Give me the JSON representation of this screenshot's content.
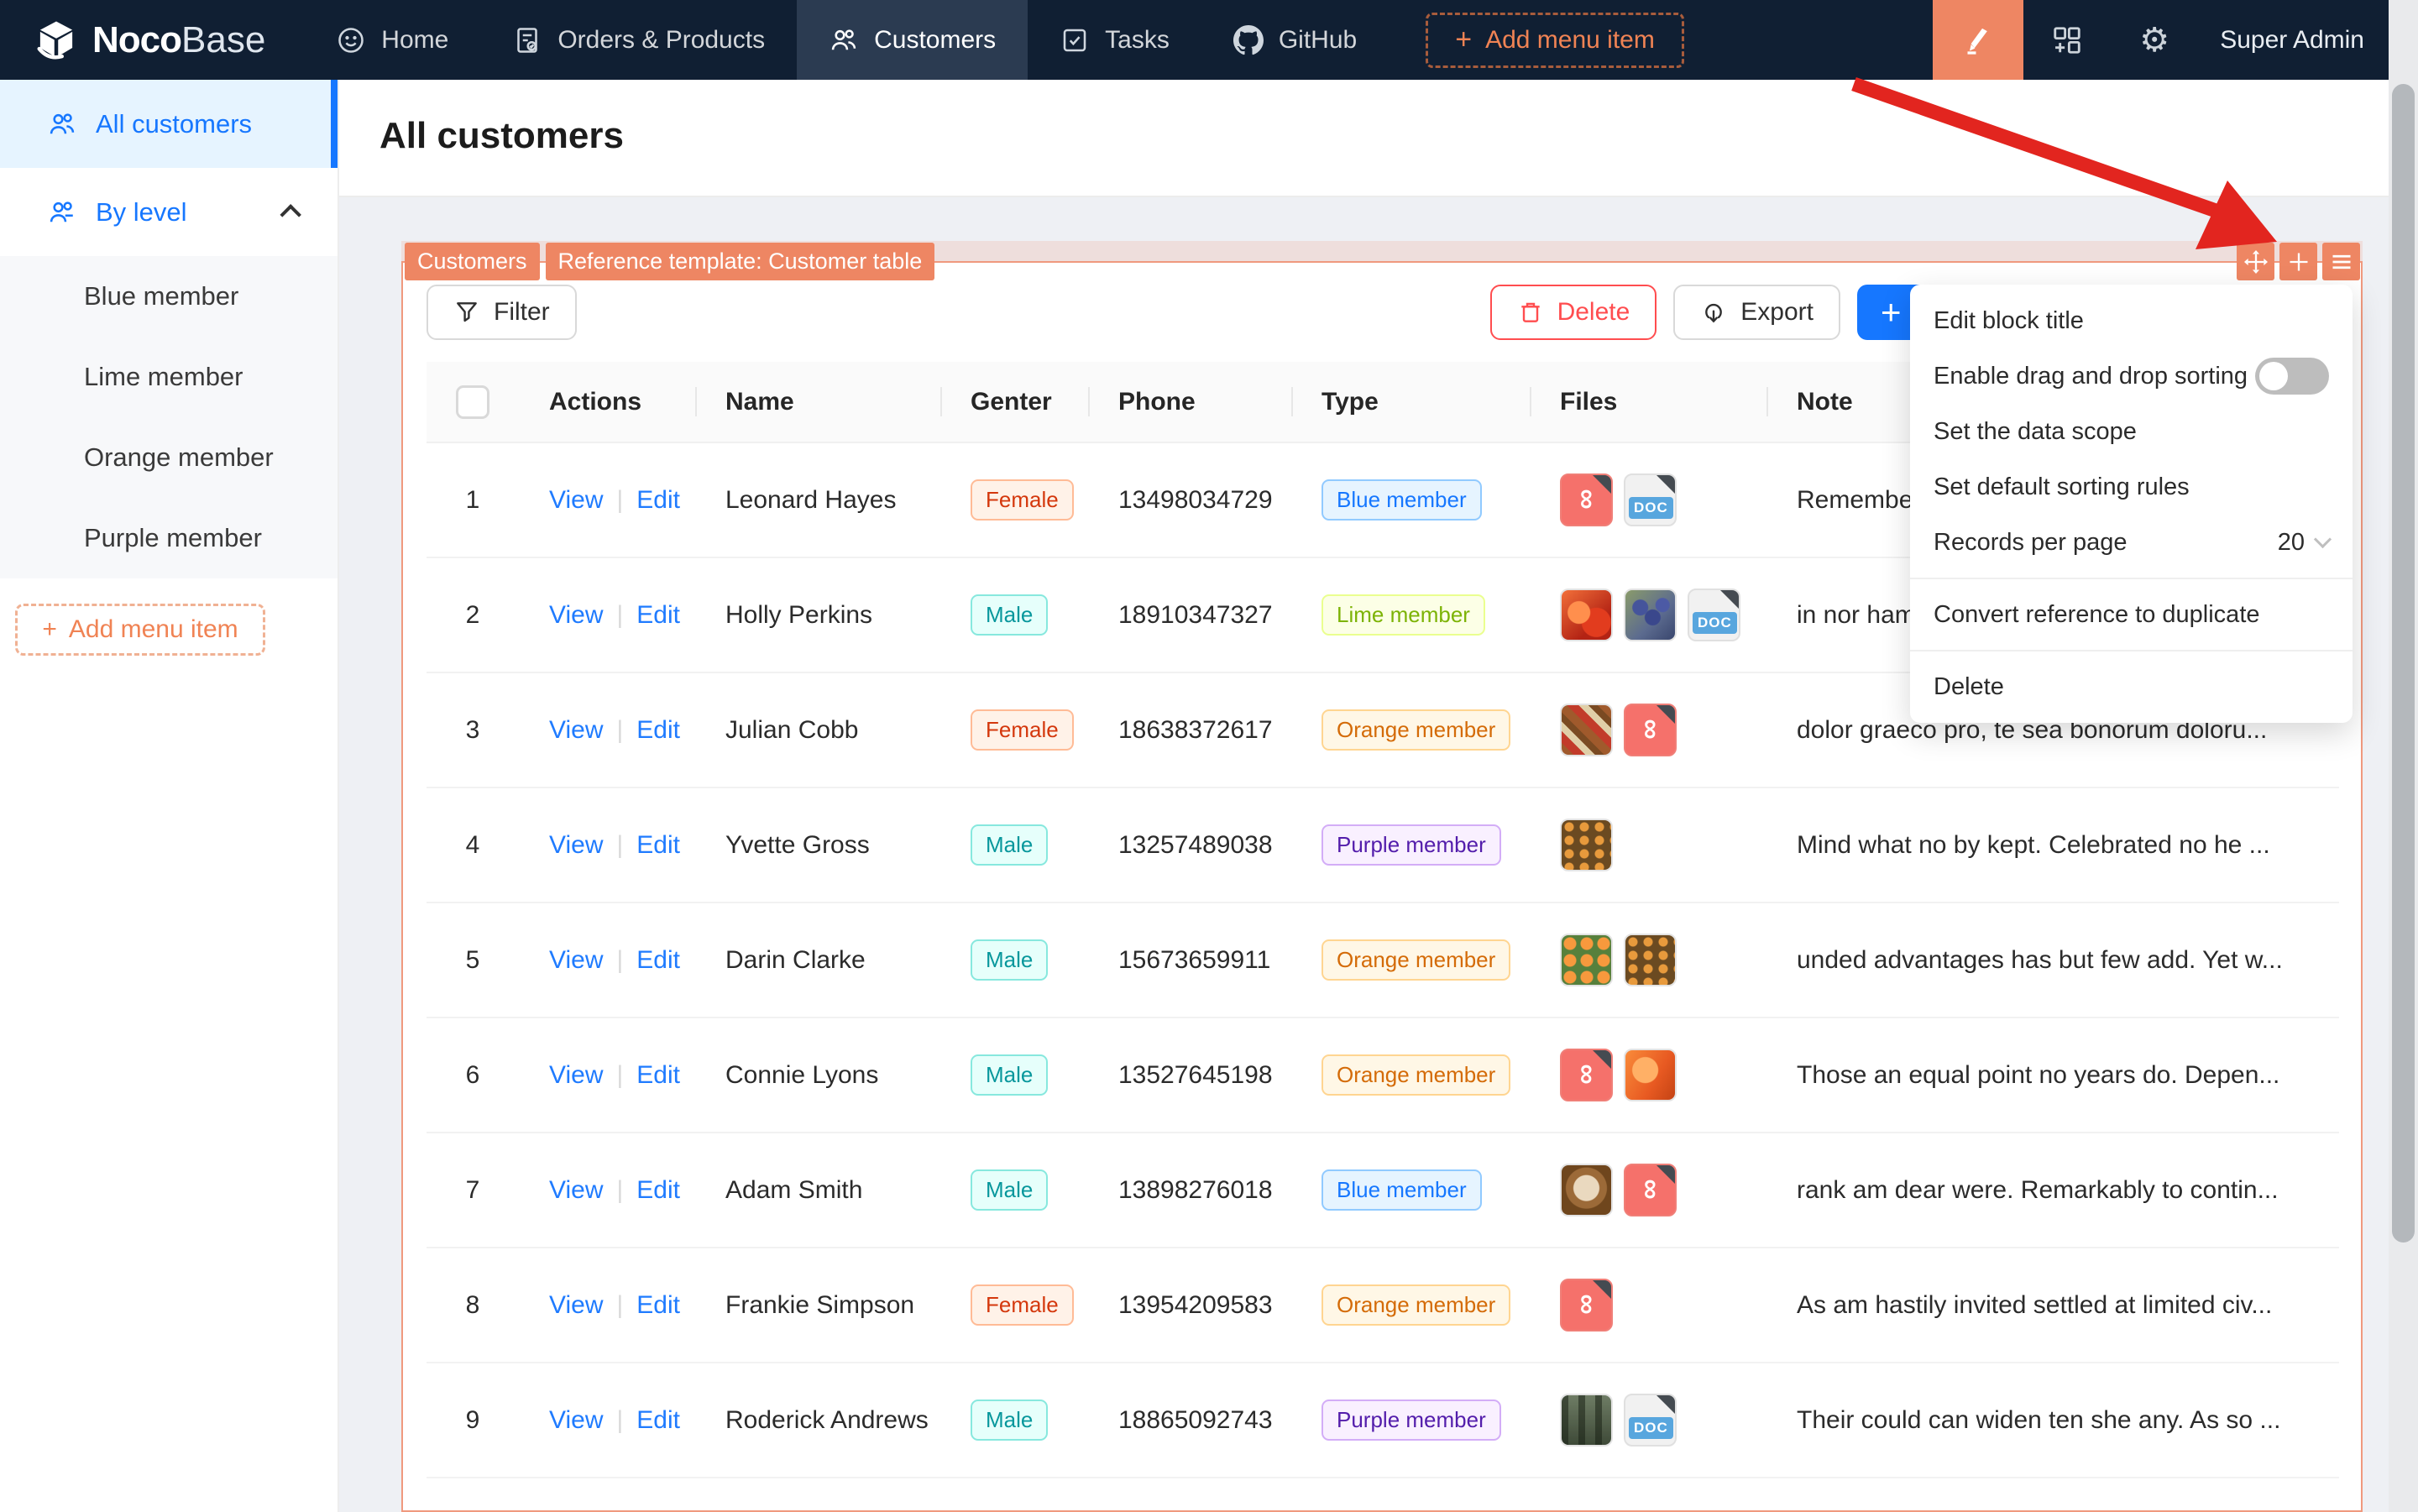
{
  "navbar": {
    "brand_bold": "Noco",
    "brand_light": "Base",
    "items": [
      {
        "label": "Home",
        "icon": "home",
        "active": false
      },
      {
        "label": "Orders & Products",
        "icon": "orders",
        "active": false
      },
      {
        "label": "Customers",
        "icon": "users",
        "active": true
      },
      {
        "label": "Tasks",
        "icon": "tasks",
        "active": false
      },
      {
        "label": "GitHub",
        "icon": "github",
        "active": false
      }
    ],
    "add_menu_item": "Add menu item",
    "user": "Super Admin"
  },
  "sidebar": {
    "all_customers": "All customers",
    "by_level": "By level",
    "sub_items": [
      "Blue member",
      "Lime member",
      "Orange member",
      "Purple member"
    ],
    "add_menu_item": "Add menu item"
  },
  "page": {
    "title": "All customers"
  },
  "block": {
    "tags": [
      "Customers",
      "Reference template: Customer table"
    ],
    "toolbar": {
      "filter": "Filter",
      "delete": "Delete",
      "export": "Export",
      "add": "+"
    }
  },
  "designer_menu": {
    "items": [
      "Edit block title",
      "Enable drag and drop sorting",
      "Set the data scope",
      "Set default sorting rules",
      "Records per page",
      "Convert reference to duplicate",
      "Delete"
    ],
    "records_per_page": "20",
    "drag_sorting_enabled": false
  },
  "table": {
    "headers": {
      "actions": "Actions",
      "name": "Name",
      "gender": "Genter",
      "phone": "Phone",
      "type": "Type",
      "files": "Files",
      "note": "Note"
    },
    "link_labels": {
      "view": "View",
      "edit": "Edit"
    },
    "doc_badge": "DOC",
    "rows": [
      {
        "index": "1",
        "name": "Leonard Hayes",
        "gender": "Female",
        "phone": "13498034729",
        "type": "Blue member",
        "type_color": "blue",
        "files": [
          {
            "kind": "pdf"
          },
          {
            "kind": "doc"
          }
        ],
        "note": "Remember"
      },
      {
        "index": "2",
        "name": "Holly Perkins",
        "gender": "Male",
        "phone": "18910347327",
        "type": "Lime member",
        "type_color": "lime",
        "files": [
          {
            "kind": "photo",
            "variant": "fruit"
          },
          {
            "kind": "photo",
            "variant": "grapes"
          },
          {
            "kind": "doc"
          }
        ],
        "note": "in nor ham"
      },
      {
        "index": "3",
        "name": "Julian Cobb",
        "gender": "Female",
        "phone": "18638372617",
        "type": "Orange member",
        "type_color": "orange",
        "files": [
          {
            "kind": "photo",
            "variant": "food"
          },
          {
            "kind": "pdf"
          }
        ],
        "note": "dolor graeco pro, te sea bonorum doloru..."
      },
      {
        "index": "4",
        "name": "Yvette Gross",
        "gender": "Male",
        "phone": "13257489038",
        "type": "Purple member",
        "type_color": "purple",
        "files": [
          {
            "kind": "photo",
            "variant": "pumpkins"
          }
        ],
        "note": "Mind what no by kept. Celebrated no he ..."
      },
      {
        "index": "5",
        "name": "Darin Clarke",
        "gender": "Male",
        "phone": "15673659911",
        "type": "Orange member",
        "type_color": "orange",
        "files": [
          {
            "kind": "photo",
            "variant": "oranges"
          },
          {
            "kind": "photo",
            "variant": "pumpkins"
          }
        ],
        "note": "unded advantages has but few add. Yet w..."
      },
      {
        "index": "6",
        "name": "Connie Lyons",
        "gender": "Male",
        "phone": "13527645198",
        "type": "Orange member",
        "type_color": "orange",
        "files": [
          {
            "kind": "pdf"
          },
          {
            "kind": "photo",
            "variant": "orangefruit"
          }
        ],
        "note": "Those an equal point no years do. Depen..."
      },
      {
        "index": "7",
        "name": "Adam Smith",
        "gender": "Male",
        "phone": "13898276018",
        "type": "Blue member",
        "type_color": "blue",
        "files": [
          {
            "kind": "photo",
            "variant": "latte"
          },
          {
            "kind": "pdf"
          }
        ],
        "note": "rank am dear were. Remarkably to contin..."
      },
      {
        "index": "8",
        "name": "Frankie Simpson",
        "gender": "Female",
        "phone": "13954209583",
        "type": "Orange member",
        "type_color": "orange",
        "files": [
          {
            "kind": "pdf"
          }
        ],
        "note": "As am hastily invited settled at limited civ..."
      },
      {
        "index": "9",
        "name": "Roderick Andrews",
        "gender": "Male",
        "phone": "18865092743",
        "type": "Purple member",
        "type_color": "purple",
        "files": [
          {
            "kind": "photo",
            "variant": "storefront"
          },
          {
            "kind": "doc"
          }
        ],
        "note": "Their could can widen ten she any. As so ..."
      }
    ]
  },
  "colors": {
    "accent_orange": "#ee8663",
    "primary_blue": "#1677ff",
    "danger_red": "#ff4d4f",
    "navbar_bg": "#101f33"
  }
}
